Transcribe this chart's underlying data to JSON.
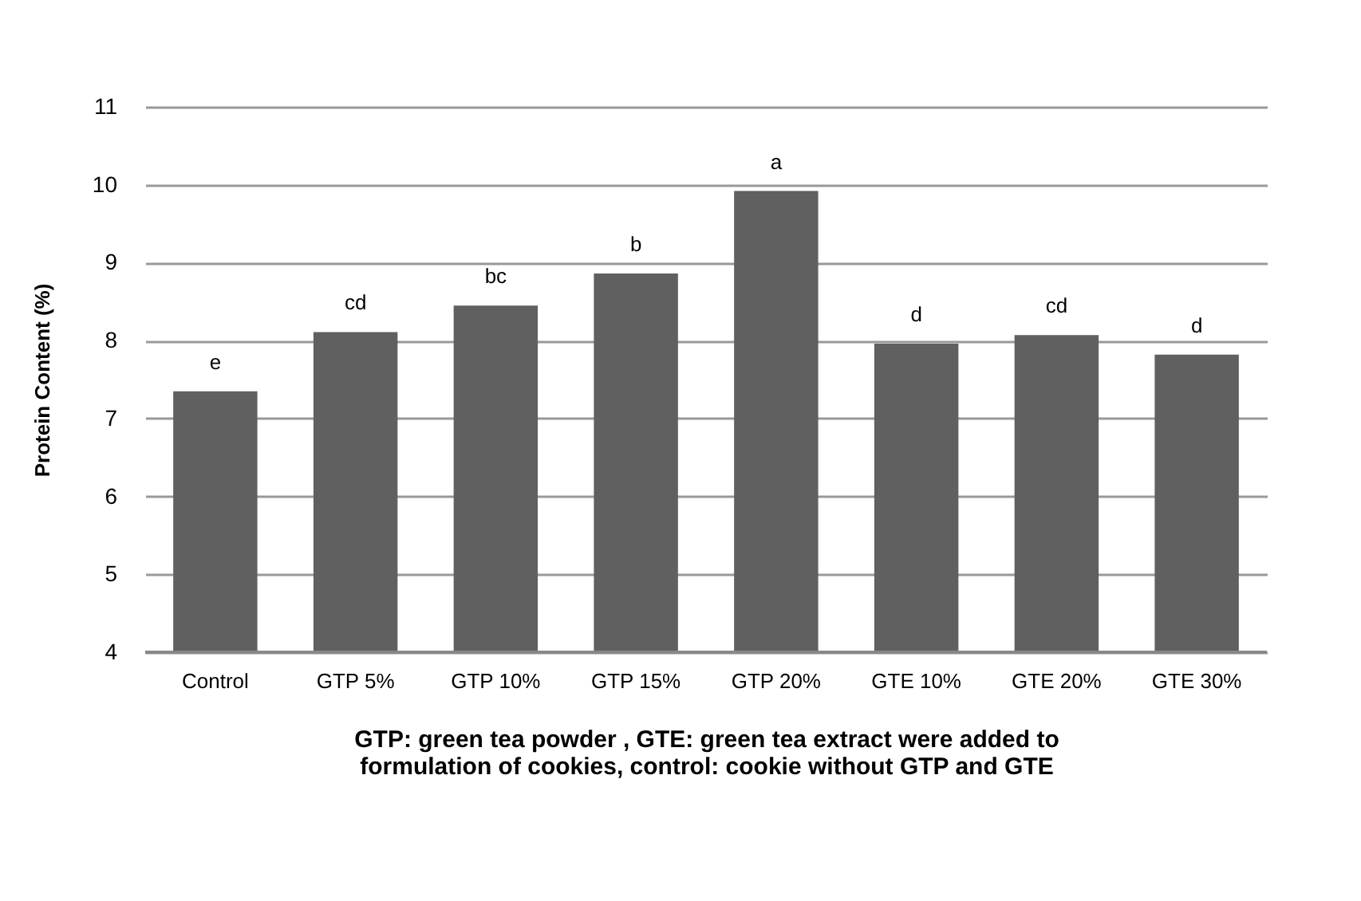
{
  "chart_data": {
    "type": "bar",
    "categories": [
      "Control",
      "GTP 5%",
      "GTP 10%",
      "GTP 15%",
      "GTP 20%",
      "GTE 10%",
      "GTE 20%",
      "GTE 30%"
    ],
    "values": [
      7.35,
      8.11,
      8.45,
      8.86,
      9.92,
      7.96,
      8.07,
      7.82
    ],
    "color": "#606060",
    "xlabel": "GTP: green tea powder , GTE: green tea extract were added to\nformulation of cookies, control: cookie without GTP and GTE",
    "ylabel": "Protein Content  (%)",
    "ylim": [
      4,
      11
    ],
    "yticks": [
      4,
      5,
      6,
      7,
      8,
      9,
      10,
      11
    ],
    "grid": "y",
    "annotations": [
      {
        "text": "e",
        "x": "Control",
        "y": 7.35
      },
      {
        "text": "cd",
        "x": "GTP 5%",
        "y": 8.11
      },
      {
        "text": "bc",
        "x": "GTP 10%",
        "y": 8.45
      },
      {
        "text": "b",
        "x": "GTP 15%",
        "y": 8.86
      },
      {
        "text": "a",
        "x": "GTP 20%",
        "y": 9.92
      },
      {
        "text": "d",
        "x": "GTE 10%",
        "y": 7.96
      },
      {
        "text": "cd",
        "x": "GTE 20%",
        "y": 8.07
      },
      {
        "text": "d",
        "x": "GTE 30%",
        "y": 7.82
      }
    ]
  }
}
